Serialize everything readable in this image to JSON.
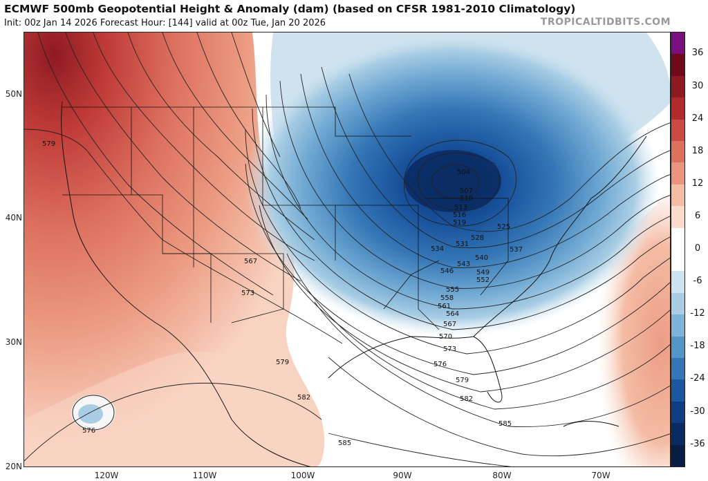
{
  "header": {
    "title": "ECMWF 500mb Geopotential Height & Anomaly (dam) (based on CFSR 1981-2010 Climatology)",
    "subtitle": "Init: 00z Jan 14 2026   Forecast Hour: [144]   valid at 00z Tue, Jan 20 2026",
    "credit": "TROPICALTIDBITS.COM"
  },
  "axes": {
    "lat_labels": [
      "50N",
      "40N",
      "30N",
      "20N"
    ],
    "lon_labels": [
      "120W",
      "110W",
      "100W",
      "90W",
      "80W",
      "70W"
    ]
  },
  "colorbar": {
    "labels": [
      "36",
      "30",
      "24",
      "18",
      "12",
      "6",
      "0",
      "-6",
      "-12",
      "-18",
      "-24",
      "-30",
      "-36"
    ],
    "colors": [
      "#7a1080",
      "#6e0a1a",
      "#8e1a22",
      "#b32a2e",
      "#cc4a44",
      "#dd7160",
      "#eb957e",
      "#f5bda6",
      "#fbdccc",
      "#ffffff",
      "#ffffff",
      "#cfe3ef",
      "#a8cde4",
      "#7eb3d7",
      "#5495c7",
      "#3577b6",
      "#1c58a0",
      "#103d80",
      "#0a2a62",
      "#081c46"
    ]
  },
  "contours": {
    "west_labels": [
      "579",
      "573",
      "567"
    ],
    "gulf_labels": [
      "579",
      "582",
      "576",
      "585"
    ],
    "trough_labels": [
      "504",
      "507",
      "510",
      "513",
      "516",
      "519",
      "525",
      "528",
      "531",
      "534",
      "537",
      "540",
      "543",
      "546",
      "549",
      "552",
      "555",
      "558",
      "561",
      "564",
      "567",
      "570",
      "573",
      "576",
      "579",
      "582",
      "585"
    ]
  }
}
